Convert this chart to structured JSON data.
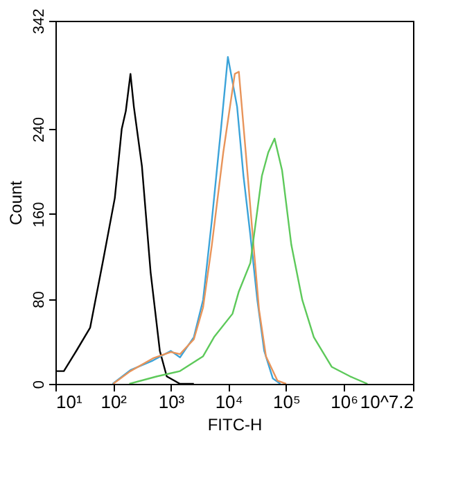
{
  "chart_data": {
    "type": "line",
    "xlabel": "FITC-H",
    "ylabel": "Count",
    "log": "x",
    "xlim": [
      10,
      15848932
    ],
    "xticks": [
      {
        "value": 10,
        "label": "10¹"
      },
      {
        "value": 100,
        "label": "10²"
      },
      {
        "value": 1000,
        "label": "10³"
      },
      {
        "value": 10000,
        "label": "10⁴"
      },
      {
        "value": 100000,
        "label": "10⁵"
      },
      {
        "value": 1000000,
        "label": "10⁶"
      },
      {
        "value": 15848932,
        "label": "10^7.2"
      }
    ],
    "ylim": [
      0,
      342
    ],
    "yticks": [
      0,
      80,
      160,
      240,
      342
    ],
    "grid": false,
    "legend": false,
    "marker": "none",
    "line_style": "solid",
    "series": [
      {
        "color": "#000000",
        "x": [
          10,
          14,
          23,
          40,
          68,
          107,
          141,
          166,
          200,
          229,
          316,
          447,
          646,
          851,
          1445,
          2512
        ],
        "values": [
          12,
          12,
          31,
          53,
          118,
          175,
          240,
          257,
          292,
          261,
          205,
          105,
          31,
          7,
          0,
          0
        ]
      },
      {
        "color": "#3ba3d9",
        "x": [
          98,
          200,
          490,
          1000,
          1445,
          2512,
          3631,
          5129,
          7413,
          9772,
          14125,
          18197,
          23988,
          31623,
          41687,
          58884,
          79433
        ],
        "values": [
          0,
          13,
          22,
          31,
          25,
          44,
          79,
          153,
          240,
          308,
          261,
          196,
          140,
          79,
          31,
          5,
          0
        ]
      },
      {
        "color": "#e8945a",
        "x": [
          100,
          200,
          490,
          1000,
          1445,
          2512,
          3631,
          5129,
          8128,
          12882,
          15136,
          19953,
          26303,
          33884,
          44668,
          70795,
          100000
        ],
        "values": [
          0,
          12,
          24,
          30,
          28,
          42,
          72,
          130,
          218,
          292,
          294,
          218,
          140,
          70,
          26,
          3,
          0
        ]
      },
      {
        "color": "#5dc95a",
        "x": [
          191,
          575,
          1445,
          3631,
          5623,
          11749,
          15136,
          23988,
          38019,
          48978,
          63096,
          85114,
          123027,
          190546,
          301995,
          616595,
          1288250,
          2570396
        ],
        "values": [
          0,
          7,
          12,
          26,
          44,
          66,
          87,
          114,
          196,
          218,
          231,
          201,
          131,
          79,
          44,
          16,
          7,
          0
        ]
      }
    ]
  }
}
